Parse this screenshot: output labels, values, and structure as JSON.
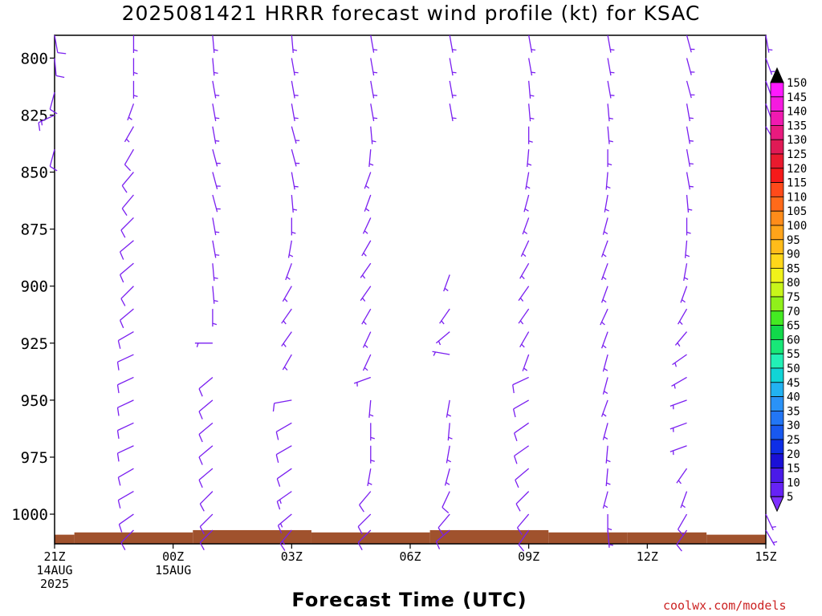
{
  "title": "2025081421 HRRR forecast wind profile (kt) for KSAC",
  "xlabel": "Forecast Time (UTC)",
  "credit": "coolwx.com/models",
  "colors": {
    "barb": "#7a1ff0",
    "terrain": "#a0522d",
    "frame": "#000000"
  },
  "chart_data": {
    "type": "wind-barb-profile",
    "title": "2025081421 HRRR forecast wind profile (kt) for KSAC",
    "xlabel": "Forecast Time (UTC)",
    "ylabel": "",
    "y_axis": {
      "ticks": [
        800,
        825,
        850,
        875,
        900,
        925,
        950,
        975,
        1000
      ],
      "range": [
        790,
        1013
      ],
      "inverted": true
    },
    "x_axis": {
      "range_hours": [
        0,
        18
      ],
      "ticks": [
        {
          "hour": 0,
          "lines": [
            "21Z",
            "14AUG",
            "2025"
          ]
        },
        {
          "hour": 3,
          "lines": [
            "00Z",
            "15AUG"
          ]
        },
        {
          "hour": 6,
          "lines": [
            "03Z"
          ]
        },
        {
          "hour": 9,
          "lines": [
            "06Z"
          ]
        },
        {
          "hour": 12,
          "lines": [
            "09Z"
          ]
        },
        {
          "hour": 15,
          "lines": [
            "12Z"
          ]
        },
        {
          "hour": 18,
          "lines": [
            "15Z"
          ]
        }
      ]
    },
    "colorbar": {
      "values": [
        5,
        10,
        15,
        20,
        25,
        30,
        35,
        40,
        45,
        50,
        55,
        60,
        65,
        70,
        75,
        80,
        85,
        90,
        95,
        100,
        105,
        110,
        115,
        120,
        125,
        130,
        135,
        140,
        145,
        150
      ],
      "colors": [
        "#7e30ff",
        "#6622f5",
        "#4a1ae8",
        "#1a10d6",
        "#0e2ee6",
        "#1858ef",
        "#2276f5",
        "#2a92f7",
        "#22b2f2",
        "#11d4d6",
        "#22f0b6",
        "#18e878",
        "#11d84a",
        "#44ea22",
        "#90f01a",
        "#c8f51a",
        "#f0f21a",
        "#ffd71a",
        "#ffbc1a",
        "#ffa41a",
        "#ff8c1a",
        "#ff6a1a",
        "#ff4a1a",
        "#f51a1a",
        "#ea1a2e",
        "#e01a55",
        "#e81a7e",
        "#f01ab0",
        "#f51ae0",
        "#ff1aff"
      ],
      "top_arrow": "#000000"
    },
    "surface_pressure": [
      {
        "h_start": 0,
        "h_end": 0.5,
        "p": 1009
      },
      {
        "h_start": 0.5,
        "h_end": 3.5,
        "p": 1008
      },
      {
        "h_start": 3.5,
        "h_end": 6.5,
        "p": 1007
      },
      {
        "h_start": 6.5,
        "h_end": 9.5,
        "p": 1008
      },
      {
        "h_start": 9.5,
        "h_end": 12.5,
        "p": 1007
      },
      {
        "h_start": 12.5,
        "h_end": 14.5,
        "p": 1008
      },
      {
        "h_start": 14.5,
        "h_end": 16.5,
        "p": 1008
      },
      {
        "h_start": 16.5,
        "h_end": 18,
        "p": 1009
      }
    ],
    "profiles": [
      {
        "time": "21Z 14AUG",
        "hour": 0,
        "levels": [
          [
            790,
            10,
            170
          ],
          [
            800,
            10,
            175
          ],
          [
            815,
            12,
            195
          ],
          [
            825,
            15,
            245
          ],
          [
            840,
            10,
            195
          ]
        ]
      },
      {
        "time": "23Z 14AUG",
        "hour": 2,
        "levels": [
          [
            790,
            5,
            180
          ],
          [
            800,
            5,
            180
          ],
          [
            810,
            5,
            180
          ],
          [
            820,
            5,
            200
          ],
          [
            830,
            5,
            210
          ],
          [
            840,
            10,
            210
          ],
          [
            850,
            10,
            220
          ],
          [
            860,
            10,
            220
          ],
          [
            870,
            10,
            225
          ],
          [
            880,
            10,
            230
          ],
          [
            890,
            10,
            230
          ],
          [
            900,
            10,
            225
          ],
          [
            910,
            10,
            230
          ],
          [
            920,
            10,
            240
          ],
          [
            930,
            10,
            245
          ],
          [
            940,
            10,
            245
          ],
          [
            950,
            10,
            245
          ],
          [
            960,
            10,
            245
          ],
          [
            970,
            10,
            245
          ],
          [
            980,
            10,
            240
          ],
          [
            990,
            10,
            240
          ],
          [
            1000,
            10,
            235
          ],
          [
            1007,
            10,
            225
          ]
        ]
      },
      {
        "time": "01Z 15AUG",
        "hour": 4,
        "levels": [
          [
            790,
            5,
            175
          ],
          [
            800,
            5,
            175
          ],
          [
            810,
            5,
            170
          ],
          [
            820,
            5,
            170
          ],
          [
            830,
            5,
            170
          ],
          [
            840,
            5,
            165
          ],
          [
            850,
            5,
            165
          ],
          [
            860,
            5,
            165
          ],
          [
            870,
            5,
            170
          ],
          [
            880,
            5,
            170
          ],
          [
            890,
            5,
            175
          ],
          [
            900,
            5,
            175
          ],
          [
            910,
            5,
            180
          ],
          [
            925,
            5,
            270
          ],
          [
            940,
            10,
            230
          ],
          [
            950,
            10,
            230
          ],
          [
            960,
            10,
            230
          ],
          [
            970,
            10,
            230
          ],
          [
            980,
            10,
            230
          ],
          [
            990,
            10,
            225
          ],
          [
            1000,
            10,
            225
          ],
          [
            1007,
            10,
            225
          ]
        ]
      },
      {
        "time": "04Z 15AUG",
        "hour": 6,
        "levels": [
          [
            790,
            5,
            175
          ],
          [
            800,
            5,
            170
          ],
          [
            810,
            5,
            170
          ],
          [
            820,
            5,
            170
          ],
          [
            830,
            5,
            165
          ],
          [
            840,
            5,
            165
          ],
          [
            850,
            5,
            170
          ],
          [
            860,
            5,
            175
          ],
          [
            870,
            5,
            180
          ],
          [
            880,
            5,
            190
          ],
          [
            890,
            5,
            200
          ],
          [
            900,
            5,
            210
          ],
          [
            910,
            5,
            215
          ],
          [
            920,
            5,
            215
          ],
          [
            930,
            5,
            210
          ],
          [
            950,
            10,
            260
          ],
          [
            960,
            10,
            240
          ],
          [
            970,
            10,
            240
          ],
          [
            980,
            10,
            235
          ],
          [
            990,
            15,
            235
          ],
          [
            1000,
            15,
            230
          ],
          [
            1007,
            15,
            220
          ]
        ]
      },
      {
        "time": "06Z 15AUG",
        "hour": 8,
        "levels": [
          [
            790,
            5,
            170
          ],
          [
            800,
            5,
            170
          ],
          [
            810,
            5,
            170
          ],
          [
            820,
            5,
            170
          ],
          [
            830,
            5,
            175
          ],
          [
            840,
            5,
            185
          ],
          [
            850,
            5,
            200
          ],
          [
            860,
            5,
            200
          ],
          [
            870,
            5,
            205
          ],
          [
            880,
            5,
            210
          ],
          [
            890,
            5,
            215
          ],
          [
            900,
            5,
            215
          ],
          [
            910,
            5,
            210
          ],
          [
            920,
            5,
            205
          ],
          [
            930,
            5,
            205
          ],
          [
            940,
            5,
            250
          ],
          [
            950,
            5,
            185
          ],
          [
            960,
            5,
            180
          ],
          [
            970,
            5,
            180
          ],
          [
            980,
            5,
            190
          ],
          [
            990,
            10,
            220
          ],
          [
            1000,
            10,
            225
          ],
          [
            1007,
            10,
            225
          ]
        ]
      },
      {
        "time": "08Z 15AUG",
        "hour": 10,
        "levels": [
          [
            790,
            5,
            170
          ],
          [
            800,
            5,
            170
          ],
          [
            810,
            5,
            170
          ],
          [
            820,
            5,
            170
          ],
          [
            895,
            5,
            200
          ],
          [
            910,
            5,
            215
          ],
          [
            920,
            5,
            230
          ],
          [
            930,
            5,
            280
          ],
          [
            950,
            5,
            190
          ],
          [
            960,
            5,
            185
          ],
          [
            970,
            5,
            190
          ],
          [
            980,
            5,
            195
          ],
          [
            990,
            10,
            205
          ],
          [
            1000,
            10,
            220
          ],
          [
            1007,
            10,
            230
          ]
        ]
      },
      {
        "time": "10Z 15AUG",
        "hour": 12,
        "levels": [
          [
            790,
            5,
            170
          ],
          [
            800,
            5,
            170
          ],
          [
            810,
            5,
            175
          ],
          [
            820,
            5,
            175
          ],
          [
            830,
            5,
            180
          ],
          [
            840,
            5,
            185
          ],
          [
            850,
            5,
            190
          ],
          [
            860,
            5,
            195
          ],
          [
            870,
            5,
            200
          ],
          [
            880,
            5,
            205
          ],
          [
            890,
            5,
            210
          ],
          [
            900,
            5,
            215
          ],
          [
            910,
            5,
            215
          ],
          [
            920,
            5,
            210
          ],
          [
            930,
            5,
            200
          ],
          [
            940,
            10,
            245
          ],
          [
            950,
            10,
            240
          ],
          [
            960,
            10,
            235
          ],
          [
            970,
            10,
            235
          ],
          [
            980,
            10,
            230
          ],
          [
            990,
            10,
            225
          ],
          [
            1000,
            10,
            220
          ],
          [
            1007,
            10,
            215
          ]
        ]
      },
      {
        "time": "12Z 15AUG",
        "hour": 14,
        "levels": [
          [
            790,
            5,
            170
          ],
          [
            800,
            5,
            170
          ],
          [
            810,
            5,
            170
          ],
          [
            820,
            5,
            175
          ],
          [
            830,
            5,
            175
          ],
          [
            840,
            5,
            180
          ],
          [
            850,
            5,
            185
          ],
          [
            860,
            5,
            190
          ],
          [
            870,
            5,
            195
          ],
          [
            880,
            5,
            200
          ],
          [
            890,
            5,
            200
          ],
          [
            900,
            5,
            200
          ],
          [
            910,
            5,
            205
          ],
          [
            920,
            5,
            200
          ],
          [
            930,
            5,
            195
          ],
          [
            940,
            5,
            195
          ],
          [
            950,
            5,
            200
          ],
          [
            960,
            5,
            195
          ],
          [
            970,
            5,
            185
          ],
          [
            980,
            5,
            185
          ],
          [
            990,
            5,
            195
          ],
          [
            1000,
            5,
            180
          ],
          [
            1007,
            5,
            175
          ]
        ]
      },
      {
        "time": "14Z 15AUG",
        "hour": 16,
        "levels": [
          [
            790,
            5,
            165
          ],
          [
            800,
            5,
            165
          ],
          [
            810,
            5,
            165
          ],
          [
            820,
            5,
            170
          ],
          [
            830,
            5,
            170
          ],
          [
            840,
            5,
            170
          ],
          [
            850,
            5,
            170
          ],
          [
            860,
            5,
            175
          ],
          [
            870,
            5,
            180
          ],
          [
            880,
            5,
            185
          ],
          [
            890,
            5,
            190
          ],
          [
            900,
            5,
            200
          ],
          [
            910,
            5,
            210
          ],
          [
            920,
            5,
            220
          ],
          [
            930,
            5,
            235
          ],
          [
            940,
            5,
            240
          ],
          [
            950,
            5,
            250
          ],
          [
            960,
            5,
            250
          ],
          [
            970,
            5,
            250
          ],
          [
            980,
            5,
            215
          ],
          [
            990,
            5,
            200
          ],
          [
            1000,
            10,
            210
          ],
          [
            1007,
            10,
            215
          ]
        ]
      },
      {
        "time": "15Z 15AUG",
        "hour": 18,
        "levels": [
          [
            790,
            5,
            170
          ],
          [
            800,
            5,
            160
          ],
          [
            810,
            5,
            160
          ],
          [
            820,
            5,
            160
          ],
          [
            830,
            5,
            150
          ],
          [
            1000,
            5,
            155
          ],
          [
            1007,
            5,
            150
          ]
        ]
      }
    ]
  }
}
